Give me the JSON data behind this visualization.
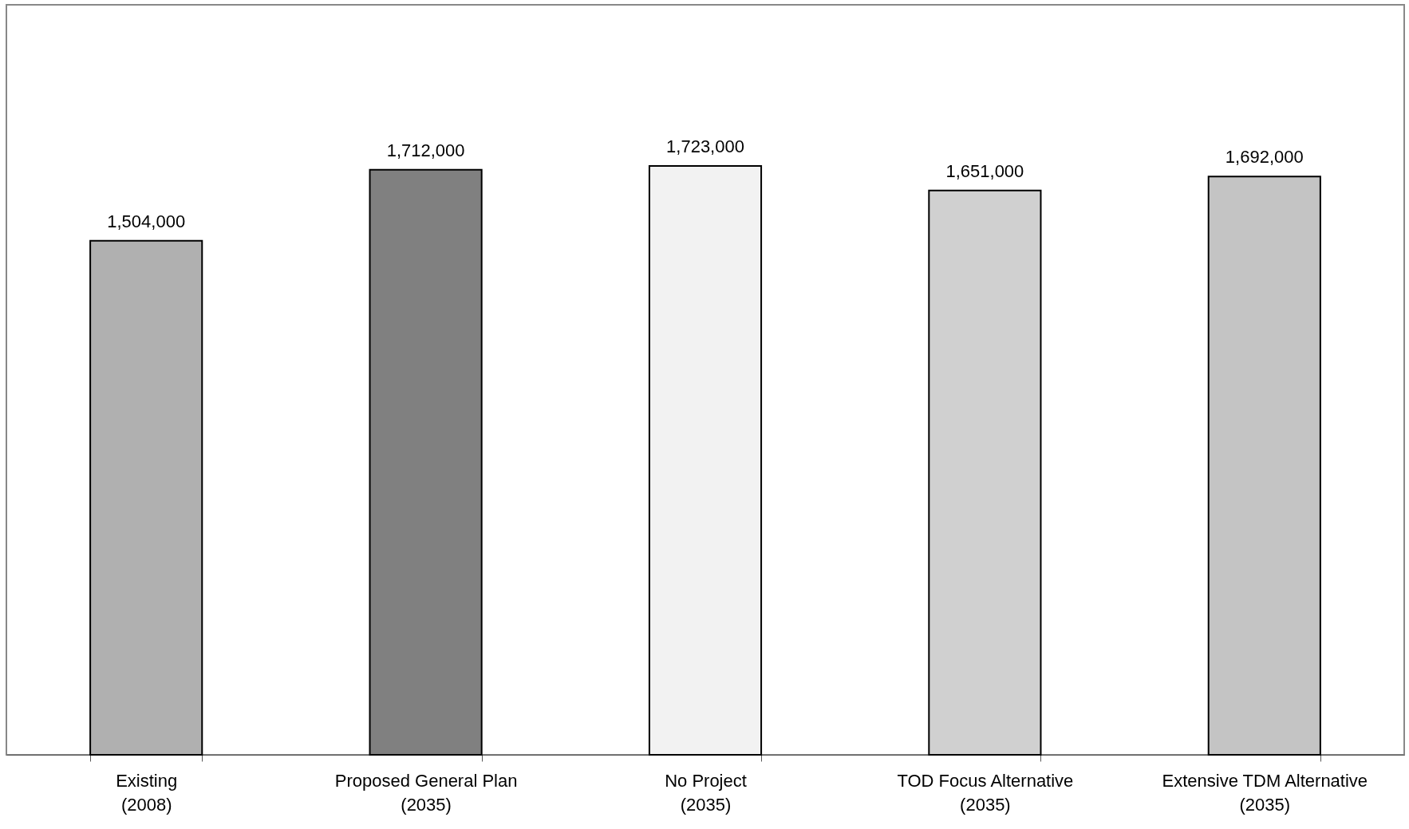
{
  "chart_data": {
    "type": "bar",
    "categories": [
      "Existing\n(2008)",
      "Proposed General Plan\n(2035)",
      "No Project\n(2035)",
      "TOD Focus Alternative\n(2035)",
      "Extensive TDM Alternative\n(2035)"
    ],
    "values": [
      1504000,
      1712000,
      1723000,
      1651000,
      1692000
    ],
    "value_labels": [
      "1,504,000",
      "1,712,000",
      "1,723,000",
      "1,651,000",
      "1,692,000"
    ],
    "colors": [
      "#b0b0b0",
      "#808080",
      "#f2f2f2",
      "#d0d0d0",
      "#c4c4c4"
    ],
    "tick_labels": "x"
  }
}
